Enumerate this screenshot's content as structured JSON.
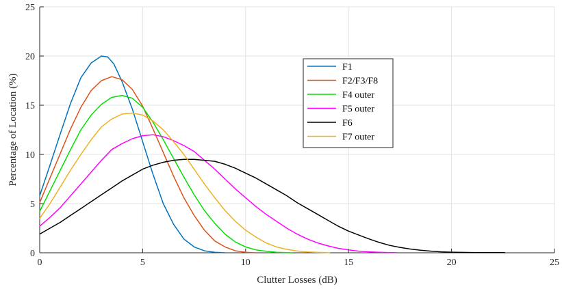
{
  "chart_data": {
    "type": "line",
    "title": "",
    "xlabel": "Clutter Losses (dB)",
    "ylabel": "Percentage of Location (%)",
    "xlim": [
      0,
      25
    ],
    "ylim": [
      0,
      25
    ],
    "xticks": [
      0,
      5,
      10,
      15,
      20,
      25
    ],
    "yticks": [
      0,
      5,
      10,
      15,
      20,
      25
    ],
    "grid": true,
    "legend_position": "upper-middle-right",
    "series": [
      {
        "name": "F1",
        "color": "#0072BD",
        "x": [
          0,
          0.5,
          1,
          1.5,
          2,
          2.5,
          3,
          3.3,
          3.6,
          4,
          4.5,
          5,
          5.5,
          6,
          6.5,
          7,
          7.5,
          8,
          8.5,
          9
        ],
        "y": [
          5.8,
          8.9,
          12.1,
          15.2,
          17.8,
          19.3,
          20.0,
          19.9,
          19.2,
          17.4,
          14.6,
          11.3,
          8.0,
          5.0,
          2.9,
          1.4,
          0.6,
          0.2,
          0.05,
          0
        ]
      },
      {
        "name": "F2/F3/F8",
        "color": "#D95319",
        "x": [
          0,
          0.5,
          1,
          1.5,
          2,
          2.5,
          3,
          3.5,
          4,
          4.5,
          5,
          5.5,
          6,
          6.5,
          7,
          7.5,
          8,
          8.5,
          9,
          9.5,
          10,
          10.5
        ],
        "y": [
          5.1,
          7.6,
          10.1,
          12.6,
          14.8,
          16.5,
          17.5,
          17.9,
          17.6,
          16.6,
          14.9,
          12.6,
          10.2,
          7.8,
          5.6,
          3.8,
          2.3,
          1.2,
          0.6,
          0.2,
          0.05,
          0
        ]
      },
      {
        "name": "F4 outer",
        "color": "#00E000",
        "x": [
          0,
          0.5,
          1,
          1.5,
          2,
          2.5,
          3,
          3.5,
          4,
          4.5,
          5,
          5.5,
          6,
          6.5,
          7,
          7.5,
          8,
          8.5,
          9,
          9.5,
          10,
          10.5,
          11,
          11.5,
          12,
          12.3
        ],
        "y": [
          4.2,
          6.3,
          8.4,
          10.5,
          12.5,
          14.0,
          15.1,
          15.8,
          16.0,
          15.7,
          14.8,
          13.3,
          11.5,
          9.6,
          7.7,
          5.9,
          4.3,
          3.0,
          1.9,
          1.1,
          0.6,
          0.3,
          0.15,
          0.05,
          0.02,
          0
        ]
      },
      {
        "name": "F5 outer",
        "color": "#FF00FF",
        "x": [
          0,
          0.5,
          1,
          1.5,
          2,
          2.5,
          3,
          3.5,
          4,
          4.5,
          5,
          5.5,
          6,
          6.5,
          7,
          7.5,
          8,
          8.5,
          9,
          9.5,
          10,
          10.5,
          11,
          11.5,
          12,
          12.5,
          13,
          13.5,
          14,
          14.5,
          15,
          15.5,
          16,
          16.5,
          17,
          17.3
        ],
        "y": [
          2.7,
          3.6,
          4.6,
          5.8,
          7.0,
          8.2,
          9.4,
          10.5,
          11.1,
          11.6,
          11.9,
          12.0,
          11.8,
          11.4,
          10.9,
          10.3,
          9.4,
          8.5,
          7.5,
          6.5,
          5.6,
          4.7,
          3.9,
          3.2,
          2.5,
          1.9,
          1.4,
          1.0,
          0.7,
          0.45,
          0.3,
          0.17,
          0.1,
          0.05,
          0.02,
          0.02
        ]
      },
      {
        "name": "F6",
        "color": "#000000",
        "x": [
          0,
          0.5,
          1,
          1.5,
          2,
          2.5,
          3,
          3.5,
          4,
          4.5,
          5,
          5.5,
          6,
          6.5,
          7,
          7.5,
          8,
          8.5,
          9,
          9.5,
          10,
          10.5,
          11,
          11.5,
          12,
          12.5,
          13,
          13.5,
          14,
          14.5,
          15,
          15.5,
          16,
          16.5,
          17,
          17.5,
          18,
          18.5,
          19,
          19.5,
          20,
          20.5,
          21,
          21.5,
          22,
          22.6
        ],
        "y": [
          1.9,
          2.5,
          3.1,
          3.8,
          4.5,
          5.2,
          5.9,
          6.6,
          7.3,
          7.9,
          8.5,
          8.9,
          9.2,
          9.4,
          9.5,
          9.5,
          9.4,
          9.3,
          9.0,
          8.6,
          8.1,
          7.6,
          7.0,
          6.4,
          5.8,
          5.1,
          4.5,
          3.9,
          3.3,
          2.7,
          2.2,
          1.8,
          1.4,
          1.05,
          0.75,
          0.55,
          0.38,
          0.26,
          0.17,
          0.1,
          0.06,
          0.04,
          0.03,
          0.02,
          0.02,
          0.02
        ]
      },
      {
        "name": "F7 outer",
        "color": "#EDB120",
        "x": [
          0,
          0.5,
          1,
          1.5,
          2,
          2.5,
          3,
          3.5,
          4,
          4.5,
          5,
          5.5,
          6,
          6.5,
          7,
          7.5,
          8,
          8.5,
          9,
          9.5,
          10,
          10.5,
          11,
          11.5,
          12,
          12.5,
          13,
          13.5,
          14,
          14.1
        ],
        "y": [
          3.5,
          5.0,
          6.7,
          8.4,
          10.0,
          11.5,
          12.8,
          13.6,
          14.1,
          14.2,
          14.0,
          13.4,
          12.5,
          11.3,
          10.0,
          8.5,
          7.0,
          5.6,
          4.3,
          3.2,
          2.3,
          1.6,
          1.0,
          0.6,
          0.35,
          0.18,
          0.08,
          0.04,
          0.02,
          0
        ]
      }
    ]
  }
}
